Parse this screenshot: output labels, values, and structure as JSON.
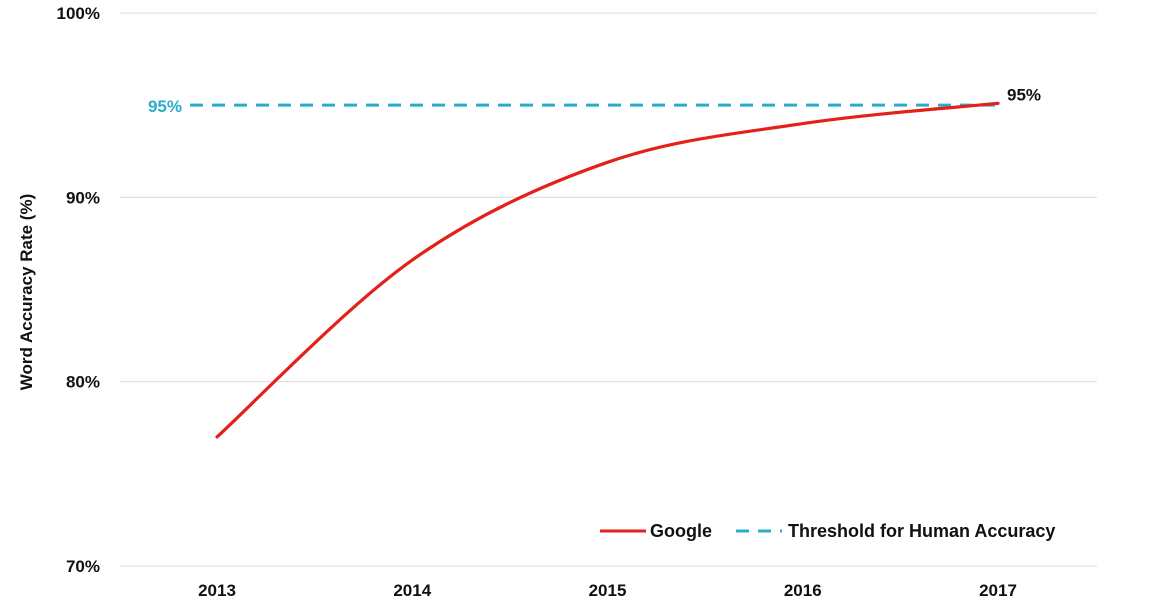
{
  "chart_data": {
    "type": "line",
    "title": "",
    "xlabel": "",
    "ylabel": "Word Accuracy Rate (%)",
    "x": [
      "2013",
      "2014",
      "2015",
      "2016",
      "2017"
    ],
    "ylim": [
      70,
      100
    ],
    "y_ticks": [
      "70%",
      "80%",
      "90%",
      "100%"
    ],
    "grid": true,
    "legend_position": "bottom-right",
    "series": [
      {
        "name": "Google",
        "style": "solid",
        "color": "#e32119",
        "values": [
          77.0,
          86.6,
          91.9,
          94.0,
          95.1
        ]
      },
      {
        "name": "Threshold for Human Accuracy",
        "style": "dashed",
        "color": "#2aaccc",
        "values": [
          95.0,
          95.0,
          95.0,
          95.0,
          95.0
        ]
      }
    ],
    "annotations": [
      {
        "text": "95%",
        "color": "#2aaccc",
        "anchor": "left-of-threshold"
      },
      {
        "text": "95%",
        "color": "#111111",
        "anchor": "end-of-google"
      }
    ]
  }
}
